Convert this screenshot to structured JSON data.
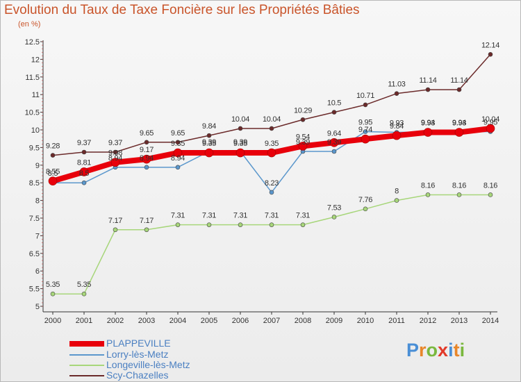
{
  "title": "Evolution du Taux de Taxe Foncière sur les Propriétés Bâties",
  "unit": "(en %)",
  "logo": {
    "text": "Proxiti",
    "letters": [
      "P",
      "r",
      "o",
      "x",
      "i",
      "t",
      "i"
    ],
    "colors": [
      "#4a8fd6",
      "#e8862a",
      "#7ab83e",
      "#e23a2a",
      "#4a8fd6",
      "#e8862a",
      "#7ab83e"
    ]
  },
  "chart_data": {
    "type": "line",
    "title": "Evolution du Taux de Taxe Foncière sur les Propriétés Bâties",
    "ylabel": "(en %)",
    "xlabel": "",
    "ylim": [
      5,
      12.5
    ],
    "yticks": [
      "5",
      "5.5",
      "6",
      "6.5",
      "7",
      "7.5",
      "8",
      "8.5",
      "9",
      "9.5",
      "10",
      "10.5",
      "11",
      "11.5",
      "12",
      "12.5"
    ],
    "categories": [
      "2000",
      "2001",
      "2002",
      "2003",
      "2004",
      "2005",
      "2006",
      "2007",
      "2008",
      "2009",
      "2010",
      "2011",
      "2012",
      "2013",
      "2014"
    ],
    "series": [
      {
        "name": "PLAPPEVILLE",
        "color": "#e8000b",
        "width": 8,
        "values": [
          8.55,
          8.81,
          9.08,
          9.17,
          9.35,
          9.35,
          9.35,
          9.35,
          9.54,
          9.64,
          9.74,
          9.84,
          9.93,
          9.93,
          10.04
        ],
        "labels": [
          "8.55",
          "8.81",
          "9.08",
          "9.17",
          "9.35",
          "9.35",
          "9.35",
          "9.35",
          "9.54",
          "9.64",
          "9.74",
          "9.84",
          "9.93",
          "9.93",
          "10.04"
        ]
      },
      {
        "name": "Lorry-lès-Metz",
        "color": "#5b97cc",
        "width": 1.5,
        "values": [
          8.5,
          8.5,
          8.94,
          8.94,
          8.94,
          9.39,
          9.39,
          8.23,
          9.39,
          9.39,
          9.95,
          9.93,
          9.94,
          9.94,
          9.95
        ],
        "labels": [
          "8.5",
          "8.5",
          "8.94",
          "8.94",
          "8.94",
          "9.39",
          "9.39",
          "8.23",
          "9.39",
          "9.39",
          "9.95",
          "9.93",
          "9.94",
          "9.94",
          "9.95"
        ]
      },
      {
        "name": "Longeville-lès-Metz",
        "color": "#a7d67a",
        "width": 1.5,
        "values": [
          5.35,
          5.35,
          7.17,
          7.17,
          7.31,
          7.31,
          7.31,
          7.31,
          7.31,
          7.53,
          7.76,
          8,
          8.16,
          8.16,
          8.16
        ],
        "labels": [
          "5.35",
          "5.35",
          "7.17",
          "7.17",
          "7.31",
          "7.31",
          "7.31",
          "7.31",
          "7.31",
          "7.53",
          "7.76",
          "8",
          "8.16",
          "8.16",
          "8.16"
        ]
      },
      {
        "name": "Scy-Chazelles",
        "color": "#6b2a2a",
        "width": 1.5,
        "values": [
          9.28,
          9.37,
          9.37,
          9.65,
          9.65,
          9.84,
          10.04,
          10.04,
          10.29,
          10.5,
          10.71,
          11.03,
          11.14,
          11.14,
          12.14
        ],
        "labels": [
          "9.28",
          "9.37",
          "9.37",
          "9.65",
          "9.65",
          "9.84",
          "10.04",
          "10.04",
          "10.29",
          "10.5",
          "10.71",
          "11.03",
          "11.14",
          "11.14",
          "12.14"
        ]
      }
    ],
    "legend": [
      "PLAPPEVILLE",
      "Lorry-lès-Metz",
      "Longeville-lès-Metz",
      "Scy-Chazelles"
    ],
    "legend_position": "bottom-left",
    "grid": false
  }
}
